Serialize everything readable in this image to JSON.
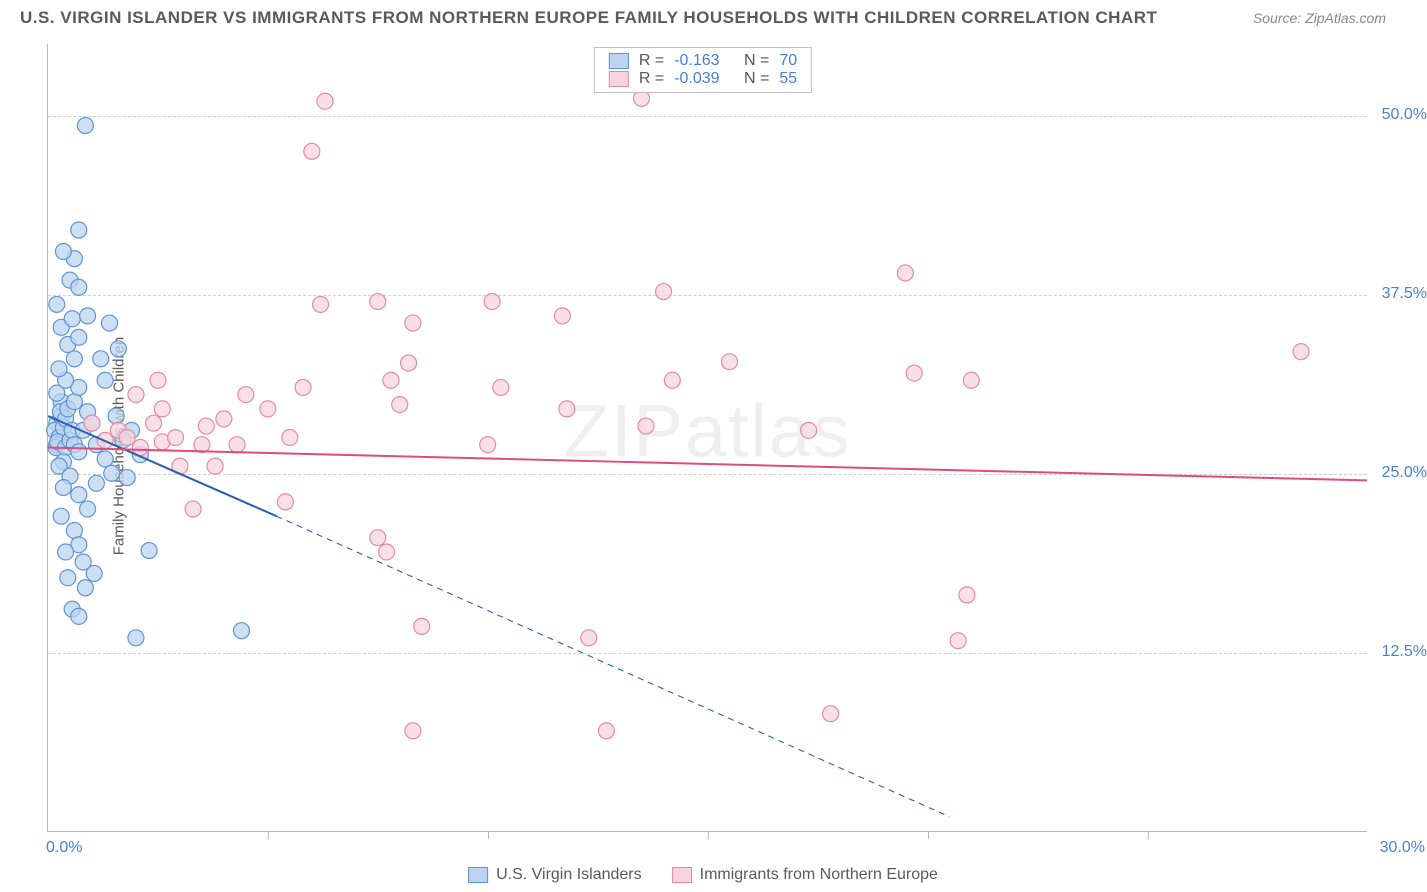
{
  "title": "U.S. VIRGIN ISLANDER VS IMMIGRANTS FROM NORTHERN EUROPE FAMILY HOUSEHOLDS WITH CHILDREN CORRELATION CHART",
  "source": "Source: ZipAtlas.com",
  "ylabel": "Family Households with Children",
  "watermark": "ZIPatlas",
  "chart": {
    "type": "scatter",
    "background_color": "#ffffff",
    "grid_color": "#cfcfcf",
    "axis_color": "#b9b9b9",
    "tick_label_color": "#4a7fd6",
    "title_color": "#5a5a5a",
    "title_fontsize": 17,
    "label_fontsize": 15,
    "tick_fontsize": 16,
    "xlim": [
      0,
      30
    ],
    "ylim": [
      0,
      55
    ],
    "xticks": [
      0,
      5,
      10,
      15,
      20,
      25,
      30
    ],
    "xtick_labels": [
      "0.0%",
      "",
      "",
      "",
      "",
      "",
      "30.0%"
    ],
    "yticks": [
      12.5,
      25,
      37.5,
      50
    ],
    "ytick_labels": [
      "12.5%",
      "25.0%",
      "37.5%",
      "50.0%"
    ],
    "marker_radius": 8,
    "marker_stroke_width": 1.2,
    "line_width": 2,
    "dash_pattern": "6 5"
  },
  "series": [
    {
      "name": "U.S. Virgin Islanders",
      "color_fill": "#bcd4ef",
      "color_stroke": "#5f94d6",
      "line_color": "#2b5fb0",
      "r": "-0.163",
      "n": "70",
      "trend": {
        "x1": 0,
        "y1": 29.0,
        "x2_solid": 5.2,
        "y2_solid": 22.0,
        "x2_dash": 20.5,
        "y2_dash": 1.0
      },
      "points": [
        [
          0.2,
          28.5
        ],
        [
          0.15,
          28.0
        ],
        [
          0.25,
          27.5
        ],
        [
          0.3,
          29.0
        ],
        [
          0.2,
          27.0
        ],
        [
          0.35,
          28.2
        ],
        [
          0.18,
          26.8
        ],
        [
          0.22,
          27.2
        ],
        [
          0.3,
          30.0
        ],
        [
          0.28,
          29.3
        ],
        [
          0.4,
          28.8
        ],
        [
          0.2,
          30.6
        ],
        [
          0.4,
          26.8
        ],
        [
          0.5,
          27.3
        ],
        [
          0.45,
          29.5
        ],
        [
          0.55,
          28.0
        ],
        [
          0.6,
          27.0
        ],
        [
          0.35,
          25.8
        ],
        [
          0.6,
          30.0
        ],
        [
          0.8,
          28.0
        ],
        [
          0.7,
          26.5
        ],
        [
          0.9,
          29.3
        ],
        [
          1.1,
          27.0
        ],
        [
          1.0,
          28.5
        ],
        [
          0.7,
          31.0
        ],
        [
          0.4,
          31.5
        ],
        [
          0.25,
          32.3
        ],
        [
          0.6,
          33.0
        ],
        [
          0.45,
          34.0
        ],
        [
          0.7,
          34.5
        ],
        [
          0.3,
          35.2
        ],
        [
          0.55,
          35.8
        ],
        [
          0.9,
          36.0
        ],
        [
          0.2,
          36.8
        ],
        [
          0.5,
          38.5
        ],
        [
          0.7,
          38.0
        ],
        [
          0.6,
          40.0
        ],
        [
          0.35,
          40.5
        ],
        [
          0.7,
          42.0
        ],
        [
          0.85,
          49.3
        ],
        [
          1.3,
          31.5
        ],
        [
          1.6,
          33.7
        ],
        [
          0.25,
          25.5
        ],
        [
          0.5,
          24.8
        ],
        [
          0.35,
          24.0
        ],
        [
          0.7,
          23.5
        ],
        [
          0.9,
          22.5
        ],
        [
          0.3,
          22.0
        ],
        [
          0.6,
          21.0
        ],
        [
          0.7,
          20.0
        ],
        [
          0.4,
          19.5
        ],
        [
          0.8,
          18.8
        ],
        [
          1.05,
          18.0
        ],
        [
          0.45,
          17.7
        ],
        [
          0.85,
          17.0
        ],
        [
          0.55,
          15.5
        ],
        [
          0.7,
          15.0
        ],
        [
          2.3,
          19.6
        ],
        [
          2.0,
          13.5
        ],
        [
          4.4,
          14.0
        ],
        [
          1.4,
          35.5
        ],
        [
          1.2,
          33.0
        ],
        [
          1.55,
          29.0
        ],
        [
          1.9,
          28.0
        ],
        [
          1.3,
          26.0
        ],
        [
          1.7,
          27.3
        ],
        [
          1.45,
          25.0
        ],
        [
          1.1,
          24.3
        ],
        [
          1.8,
          24.7
        ],
        [
          2.1,
          26.3
        ]
      ]
    },
    {
      "name": "Immigrants from Northern Europe",
      "color_fill": "#f7d4de",
      "color_stroke": "#e68aa5",
      "line_color": "#e24a7b",
      "r": "-0.039",
      "n": "55",
      "trend": {
        "x1": 0,
        "y1": 26.8,
        "x2_solid": 30,
        "y2_solid": 24.5,
        "x2_dash": 30,
        "y2_dash": 24.5
      },
      "points": [
        [
          1.0,
          28.5
        ],
        [
          1.3,
          27.3
        ],
        [
          1.6,
          28.0
        ],
        [
          1.8,
          27.5
        ],
        [
          2.1,
          26.8
        ],
        [
          2.6,
          27.2
        ],
        [
          2.4,
          28.5
        ],
        [
          2.6,
          29.5
        ],
        [
          2.9,
          27.5
        ],
        [
          3.0,
          25.5
        ],
        [
          3.5,
          27.0
        ],
        [
          3.6,
          28.3
        ],
        [
          2.0,
          30.5
        ],
        [
          2.5,
          31.5
        ],
        [
          4.0,
          28.8
        ],
        [
          4.3,
          27.0
        ],
        [
          4.5,
          30.5
        ],
        [
          5.0,
          29.5
        ],
        [
          5.5,
          27.5
        ],
        [
          5.4,
          23.0
        ],
        [
          3.3,
          22.5
        ],
        [
          5.8,
          31.0
        ],
        [
          6.2,
          36.8
        ],
        [
          6.0,
          47.5
        ],
        [
          6.3,
          51.0
        ],
        [
          7.5,
          37.0
        ],
        [
          7.8,
          31.5
        ],
        [
          7.5,
          20.5
        ],
        [
          7.7,
          19.5
        ],
        [
          8.0,
          29.8
        ],
        [
          8.2,
          32.7
        ],
        [
          8.3,
          35.5
        ],
        [
          10.1,
          37.0
        ],
        [
          10.3,
          31.0
        ],
        [
          10.0,
          27.0
        ],
        [
          8.5,
          14.3
        ],
        [
          8.3,
          7.0
        ],
        [
          11.7,
          36.0
        ],
        [
          11.8,
          29.5
        ],
        [
          12.3,
          13.5
        ],
        [
          12.7,
          7.0
        ],
        [
          13.5,
          51.2
        ],
        [
          13.6,
          28.3
        ],
        [
          14.0,
          37.7
        ],
        [
          14.2,
          31.5
        ],
        [
          15.5,
          32.8
        ],
        [
          17.3,
          28.0
        ],
        [
          17.8,
          8.2
        ],
        [
          19.5,
          39.0
        ],
        [
          19.7,
          32.0
        ],
        [
          20.7,
          13.3
        ],
        [
          20.9,
          16.5
        ],
        [
          21.0,
          31.5
        ],
        [
          28.5,
          33.5
        ],
        [
          3.8,
          25.5
        ]
      ]
    }
  ],
  "stats_legend": {
    "r_label": "R =",
    "n_label": "N ="
  },
  "bottom_legend_labels": [
    "U.S. Virgin Islanders",
    "Immigrants from Northern Europe"
  ]
}
